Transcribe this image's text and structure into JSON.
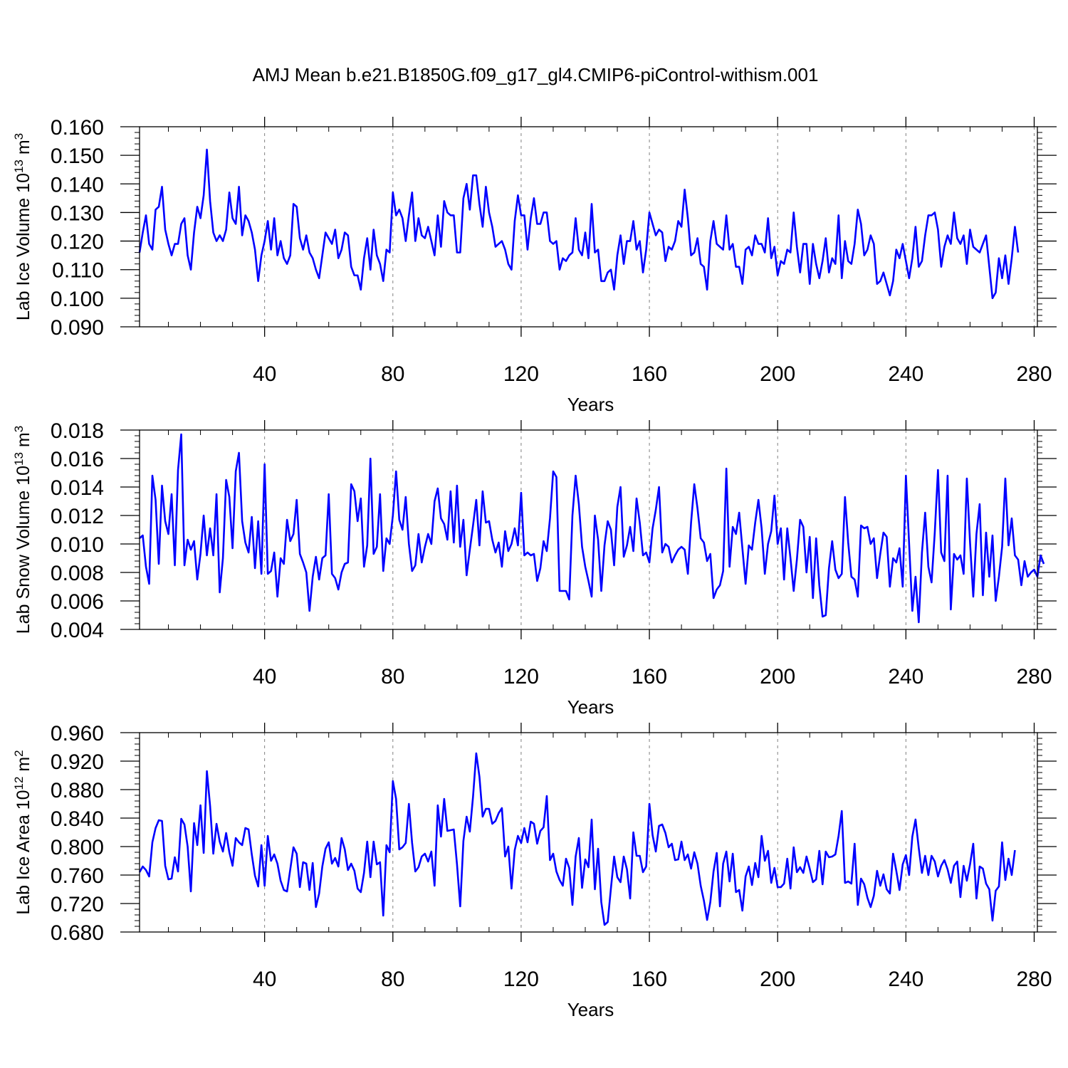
{
  "figure": {
    "title": "AMJ Mean b.e21.B1850G.f09_g17_gl4.CMIP6-piControl-withism.001"
  },
  "colors": {
    "line": "#0000ff",
    "axis": "#000000",
    "grid": "#808080",
    "background": "#ffffff"
  },
  "chart_data": [
    {
      "type": "line",
      "title": "AMJ Mean b.e21.B1850G.f09_g17_gl4.CMIP6-piControl-withism.001",
      "ylabel_base": "Lab Ice Volume 10",
      "ylabel_exp": "13",
      "ylabel_unit": " m",
      "ylabel_unit_exp": "3",
      "xlabel": "Years",
      "xlim": [
        1,
        281
      ],
      "ylim": [
        0.09,
        0.16
      ],
      "x_start": 1,
      "xticks": [
        40,
        80,
        120,
        160,
        200,
        240,
        280
      ],
      "xtick_labels": [
        "40",
        "80",
        "120",
        "160",
        "200",
        "240",
        "280"
      ],
      "yticks": [
        0.09,
        0.1,
        0.11,
        0.12,
        0.13,
        0.14,
        0.15,
        0.16
      ],
      "ytick_labels": [
        "0.090",
        "0.100",
        "0.110",
        "0.120",
        "0.130",
        "0.140",
        "0.150",
        "0.160"
      ],
      "grid_x": true,
      "values": [
        0.116,
        0.123,
        0.129,
        0.119,
        0.117,
        0.131,
        0.132,
        0.139,
        0.124,
        0.119,
        0.115,
        0.119,
        0.119,
        0.126,
        0.128,
        0.115,
        0.11,
        0.123,
        0.132,
        0.128,
        0.136,
        0.152,
        0.134,
        0.123,
        0.12,
        0.122,
        0.12,
        0.124,
        0.137,
        0.128,
        0.126,
        0.139,
        0.122,
        0.129,
        0.127,
        0.123,
        0.117,
        0.106,
        0.115,
        0.12,
        0.127,
        0.117,
        0.128,
        0.115,
        0.12,
        0.114,
        0.112,
        0.115,
        0.133,
        0.132,
        0.121,
        0.117,
        0.122,
        0.116,
        0.114,
        0.11,
        0.107,
        0.115,
        0.123,
        0.121,
        0.119,
        0.124,
        0.114,
        0.117,
        0.123,
        0.122,
        0.111,
        0.108,
        0.108,
        0.103,
        0.114,
        0.121,
        0.11,
        0.124,
        0.115,
        0.112,
        0.106,
        0.117,
        0.116,
        0.137,
        0.129,
        0.131,
        0.128,
        0.12,
        0.129,
        0.137,
        0.12,
        0.128,
        0.122,
        0.121,
        0.125,
        0.12,
        0.115,
        0.129,
        0.118,
        0.134,
        0.13,
        0.129,
        0.129,
        0.116,
        0.116,
        0.135,
        0.14,
        0.131,
        0.143,
        0.143,
        0.133,
        0.125,
        0.139,
        0.13,
        0.125,
        0.118,
        0.119,
        0.12,
        0.117,
        0.112,
        0.11,
        0.127,
        0.136,
        0.129,
        0.129,
        0.117,
        0.128,
        0.135,
        0.126,
        0.126,
        0.13,
        0.13,
        0.12,
        0.119,
        0.12,
        0.11,
        0.114,
        0.113,
        0.115,
        0.116,
        0.128,
        0.117,
        0.115,
        0.123,
        0.114,
        0.133,
        0.116,
        0.117,
        0.106,
        0.106,
        0.109,
        0.11,
        0.103,
        0.115,
        0.122,
        0.112,
        0.12,
        0.12,
        0.127,
        0.117,
        0.12,
        0.109,
        0.117,
        0.13,
        0.126,
        0.122,
        0.124,
        0.123,
        0.113,
        0.118,
        0.117,
        0.12,
        0.127,
        0.125,
        0.138,
        0.128,
        0.115,
        0.116,
        0.121,
        0.112,
        0.111,
        0.103,
        0.12,
        0.127,
        0.119,
        0.118,
        0.117,
        0.129,
        0.117,
        0.119,
        0.111,
        0.111,
        0.105,
        0.117,
        0.118,
        0.115,
        0.122,
        0.119,
        0.119,
        0.116,
        0.128,
        0.114,
        0.118,
        0.108,
        0.113,
        0.112,
        0.117,
        0.116,
        0.13,
        0.118,
        0.109,
        0.119,
        0.119,
        0.105,
        0.119,
        0.112,
        0.107,
        0.113,
        0.121,
        0.109,
        0.114,
        0.112,
        0.129,
        0.107,
        0.12,
        0.113,
        0.112,
        0.119,
        0.131,
        0.126,
        0.115,
        0.117,
        0.122,
        0.119,
        0.105,
        0.106,
        0.109,
        0.105,
        0.101,
        0.106,
        0.117,
        0.114,
        0.119,
        0.113,
        0.107,
        0.114,
        0.125,
        0.111,
        0.113,
        0.122,
        0.129,
        0.129,
        0.13,
        0.124,
        0.111,
        0.118,
        0.122,
        0.119,
        0.13,
        0.121,
        0.119,
        0.122,
        0.112,
        0.124,
        0.118,
        0.117,
        0.116,
        0.119,
        0.122,
        0.111,
        0.1,
        0.102,
        0.114,
        0.107,
        0.115,
        0.105,
        0.114,
        0.125,
        0.116
      ]
    },
    {
      "type": "line",
      "ylabel_base": "Lab Snow Volume 10",
      "ylabel_exp": "13",
      "ylabel_unit": " m",
      "ylabel_unit_exp": "3",
      "xlabel": "Years",
      "xlim": [
        1,
        281
      ],
      "ylim": [
        0.004,
        0.018
      ],
      "x_start": 1,
      "xticks": [
        40,
        80,
        120,
        160,
        200,
        240,
        280
      ],
      "xtick_labels": [
        "40",
        "80",
        "120",
        "160",
        "200",
        "240",
        "280"
      ],
      "yticks": [
        0.004,
        0.006,
        0.008,
        0.01,
        0.012,
        0.014,
        0.016,
        0.018
      ],
      "ytick_labels": [
        "0.004",
        "0.006",
        "0.008",
        "0.010",
        "0.012",
        "0.014",
        "0.016",
        "0.018"
      ],
      "grid_x": true,
      "values": [
        0.0104,
        0.0106,
        0.0084,
        0.0072,
        0.0148,
        0.0131,
        0.0086,
        0.0141,
        0.0116,
        0.0107,
        0.0135,
        0.0085,
        0.0152,
        0.0177,
        0.0085,
        0.0103,
        0.0096,
        0.0102,
        0.0075,
        0.0093,
        0.012,
        0.0092,
        0.0111,
        0.0092,
        0.0135,
        0.0066,
        0.009,
        0.0145,
        0.0133,
        0.0097,
        0.0151,
        0.0164,
        0.0116,
        0.0101,
        0.0094,
        0.0119,
        0.0083,
        0.0116,
        0.0079,
        0.0156,
        0.0079,
        0.0081,
        0.0094,
        0.0063,
        0.009,
        0.0086,
        0.0117,
        0.0102,
        0.0107,
        0.0131,
        0.0093,
        0.0087,
        0.008,
        0.0053,
        0.0077,
        0.0091,
        0.0075,
        0.009,
        0.0092,
        0.0135,
        0.0079,
        0.0076,
        0.0068,
        0.008,
        0.0086,
        0.0087,
        0.0142,
        0.0137,
        0.0116,
        0.0132,
        0.0084,
        0.0099,
        0.016,
        0.0093,
        0.0098,
        0.0135,
        0.0081,
        0.0104,
        0.01,
        0.012,
        0.0151,
        0.0117,
        0.011,
        0.0133,
        0.01,
        0.0081,
        0.0085,
        0.0107,
        0.0087,
        0.0098,
        0.0107,
        0.01,
        0.013,
        0.0139,
        0.0118,
        0.0114,
        0.0103,
        0.0137,
        0.0101,
        0.0141,
        0.0098,
        0.0117,
        0.0078,
        0.0096,
        0.0113,
        0.0131,
        0.0099,
        0.0137,
        0.0115,
        0.0116,
        0.0103,
        0.0094,
        0.0101,
        0.0084,
        0.0109,
        0.0095,
        0.01,
        0.0111,
        0.0099,
        0.0136,
        0.0092,
        0.0094,
        0.0092,
        0.0093,
        0.0074,
        0.0083,
        0.0102,
        0.0095,
        0.0118,
        0.0151,
        0.0147,
        0.0067,
        0.0067,
        0.0067,
        0.0061,
        0.012,
        0.0148,
        0.0128,
        0.0098,
        0.0084,
        0.0074,
        0.0063,
        0.012,
        0.0103,
        0.0067,
        0.0099,
        0.0116,
        0.011,
        0.0085,
        0.0126,
        0.014,
        0.0091,
        0.0099,
        0.0112,
        0.0095,
        0.0132,
        0.0115,
        0.0092,
        0.0094,
        0.0087,
        0.0111,
        0.0124,
        0.014,
        0.0094,
        0.01,
        0.0098,
        0.0087,
        0.0092,
        0.0096,
        0.0098,
        0.0096,
        0.0079,
        0.0115,
        0.0142,
        0.0125,
        0.0104,
        0.0101,
        0.0088,
        0.0093,
        0.0062,
        0.0068,
        0.0071,
        0.0081,
        0.0153,
        0.0084,
        0.0112,
        0.0107,
        0.0122,
        0.0097,
        0.0072,
        0.0099,
        0.0096,
        0.0115,
        0.0131,
        0.0111,
        0.0079,
        0.01,
        0.0109,
        0.0134,
        0.01,
        0.0111,
        0.0075,
        0.0111,
        0.009,
        0.0067,
        0.0089,
        0.0117,
        0.0112,
        0.008,
        0.0105,
        0.0062,
        0.0104,
        0.0071,
        0.0049,
        0.005,
        0.0083,
        0.0102,
        0.0082,
        0.0076,
        0.0079,
        0.0133,
        0.0101,
        0.0077,
        0.0075,
        0.0063,
        0.0113,
        0.0111,
        0.0112,
        0.01,
        0.0104,
        0.0076,
        0.0093,
        0.0108,
        0.0105,
        0.007,
        0.009,
        0.0087,
        0.0097,
        0.007,
        0.0148,
        0.01,
        0.0053,
        0.0077,
        0.0045,
        0.0094,
        0.0122,
        0.0084,
        0.0073,
        0.0108,
        0.0152,
        0.0094,
        0.0088,
        0.0148,
        0.0054,
        0.0093,
        0.0089,
        0.0092,
        0.0079,
        0.0146,
        0.0101,
        0.0063,
        0.0107,
        0.0128,
        0.0064,
        0.0108,
        0.0077,
        0.0106,
        0.006,
        0.0077,
        0.0098,
        0.0146,
        0.0099,
        0.0118,
        0.0092,
        0.0089,
        0.0071,
        0.0088,
        0.0077,
        0.008,
        0.0082,
        0.0077,
        0.0092,
        0.0086
      ]
    },
    {
      "type": "line",
      "ylabel_base": "Lab Ice Area 10",
      "ylabel_exp": "12",
      "ylabel_unit": " m",
      "ylabel_unit_exp": "2",
      "xlabel": "Years",
      "xlim": [
        1,
        281
      ],
      "ylim": [
        0.68,
        0.96
      ],
      "x_start": 1,
      "xticks": [
        40,
        80,
        120,
        160,
        200,
        240,
        280
      ],
      "xtick_labels": [
        "40",
        "80",
        "120",
        "160",
        "200",
        "240",
        "280"
      ],
      "yticks": [
        0.68,
        0.72,
        0.76,
        0.8,
        0.84,
        0.88,
        0.92,
        0.96
      ],
      "ytick_labels": [
        "0.680",
        "0.720",
        "0.760",
        "0.800",
        "0.840",
        "0.880",
        "0.920",
        "0.960"
      ],
      "grid_x": true,
      "values": [
        0.764,
        0.772,
        0.767,
        0.758,
        0.806,
        0.826,
        0.837,
        0.836,
        0.773,
        0.754,
        0.755,
        0.785,
        0.765,
        0.839,
        0.831,
        0.8,
        0.737,
        0.833,
        0.802,
        0.858,
        0.791,
        0.906,
        0.857,
        0.79,
        0.832,
        0.807,
        0.793,
        0.819,
        0.792,
        0.773,
        0.812,
        0.806,
        0.802,
        0.826,
        0.824,
        0.789,
        0.759,
        0.744,
        0.802,
        0.745,
        0.815,
        0.78,
        0.789,
        0.776,
        0.752,
        0.739,
        0.737,
        0.768,
        0.799,
        0.79,
        0.743,
        0.778,
        0.776,
        0.739,
        0.777,
        0.715,
        0.734,
        0.772,
        0.797,
        0.806,
        0.776,
        0.784,
        0.772,
        0.812,
        0.796,
        0.767,
        0.776,
        0.766,
        0.741,
        0.736,
        0.763,
        0.807,
        0.757,
        0.807,
        0.775,
        0.778,
        0.703,
        0.802,
        0.792,
        0.892,
        0.867,
        0.796,
        0.799,
        0.805,
        0.86,
        0.805,
        0.765,
        0.771,
        0.786,
        0.79,
        0.779,
        0.793,
        0.745,
        0.858,
        0.814,
        0.867,
        0.822,
        0.823,
        0.824,
        0.775,
        0.716,
        0.808,
        0.842,
        0.821,
        0.87,
        0.931,
        0.898,
        0.842,
        0.853,
        0.853,
        0.832,
        0.836,
        0.847,
        0.854,
        0.786,
        0.8,
        0.741,
        0.795,
        0.815,
        0.805,
        0.826,
        0.806,
        0.835,
        0.832,
        0.804,
        0.822,
        0.827,
        0.871,
        0.781,
        0.79,
        0.765,
        0.753,
        0.745,
        0.783,
        0.77,
        0.718,
        0.786,
        0.812,
        0.742,
        0.782,
        0.771,
        0.838,
        0.74,
        0.797,
        0.722,
        0.69,
        0.694,
        0.741,
        0.786,
        0.757,
        0.75,
        0.786,
        0.768,
        0.727,
        0.82,
        0.787,
        0.787,
        0.764,
        0.772,
        0.86,
        0.816,
        0.793,
        0.829,
        0.831,
        0.819,
        0.799,
        0.804,
        0.781,
        0.782,
        0.807,
        0.781,
        0.789,
        0.769,
        0.792,
        0.776,
        0.745,
        0.724,
        0.697,
        0.722,
        0.765,
        0.791,
        0.716,
        0.776,
        0.793,
        0.751,
        0.79,
        0.736,
        0.739,
        0.71,
        0.758,
        0.772,
        0.746,
        0.777,
        0.757,
        0.815,
        0.78,
        0.794,
        0.749,
        0.77,
        0.743,
        0.743,
        0.748,
        0.783,
        0.741,
        0.799,
        0.764,
        0.771,
        0.763,
        0.786,
        0.769,
        0.75,
        0.754,
        0.794,
        0.747,
        0.793,
        0.785,
        0.786,
        0.789,
        0.815,
        0.85,
        0.749,
        0.751,
        0.748,
        0.804,
        0.718,
        0.755,
        0.747,
        0.728,
        0.715,
        0.731,
        0.766,
        0.745,
        0.761,
        0.74,
        0.734,
        0.79,
        0.766,
        0.739,
        0.775,
        0.788,
        0.76,
        0.814,
        0.838,
        0.798,
        0.763,
        0.787,
        0.76,
        0.787,
        0.779,
        0.758,
        0.773,
        0.781,
        0.768,
        0.749,
        0.773,
        0.779,
        0.729,
        0.773,
        0.752,
        0.775,
        0.804,
        0.727,
        0.772,
        0.769,
        0.748,
        0.74,
        0.696,
        0.738,
        0.744,
        0.806,
        0.753,
        0.783,
        0.76,
        0.795
      ]
    }
  ]
}
